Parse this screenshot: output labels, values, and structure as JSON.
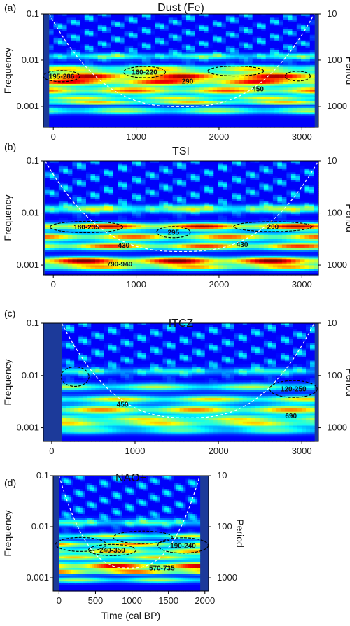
{
  "chart_data": [
    {
      "type": "heatmap",
      "panel_label": "(a)",
      "title": "Dust (Fe)",
      "ylabel": "Frequency",
      "ylabel_right": "Period",
      "xlabel": "",
      "x_range": [
        -120,
        3200
      ],
      "x_ticks": [
        0,
        1000,
        2000,
        3000
      ],
      "y_scale": "log",
      "y_range": [
        0.1,
        0.00035
      ],
      "y_ticks": [
        {
          "v": 0.1,
          "label": "0.1"
        },
        {
          "v": 0.01,
          "label": "0.01"
        },
        {
          "v": 0.001,
          "label": "0.001"
        }
      ],
      "period_ticks": [
        {
          "v": 10,
          "label": "10"
        },
        {
          "v": 100,
          "label": "100"
        },
        {
          "v": 1000,
          "label": "1000"
        }
      ],
      "data_x_range": [
        -50,
        3150
      ],
      "cone_x_range": [
        -50,
        3150
      ],
      "bands": [
        {
          "f": 0.012,
          "amp": 0.35,
          "w": 0.05
        },
        {
          "f": 0.0065,
          "amp": 0.55,
          "w": 0.05
        },
        {
          "f": 0.0045,
          "amp": 0.85,
          "w": 0.06
        },
        {
          "f": 0.0033,
          "amp": 0.75,
          "w": 0.05
        },
        {
          "f": 0.0022,
          "amp": 0.7,
          "w": 0.06
        },
        {
          "f": 0.0015,
          "amp": 0.5,
          "w": 0.04
        },
        {
          "f": 0.0012,
          "amp": 0.6,
          "w": 0.03
        },
        {
          "f": 0.0008,
          "amp": 0.45,
          "w": 0.05
        }
      ],
      "annotations": [
        {
          "text": "195-286",
          "x": 100,
          "f": 0.0045,
          "rx": 26,
          "ry": 8
        },
        {
          "text": "160-220",
          "x": 1100,
          "f": 0.0055,
          "rx": 30,
          "ry": 8
        },
        {
          "text": "290",
          "x": 1620,
          "f": 0.0035
        },
        {
          "text": "450",
          "x": 2470,
          "f": 0.0024
        },
        {
          "text": "",
          "x": 2200,
          "f": 0.0058,
          "rx": 40,
          "ry": 7
        },
        {
          "text": "",
          "x": 2950,
          "f": 0.0045,
          "rx": 18,
          "ry": 7
        }
      ]
    },
    {
      "type": "heatmap",
      "panel_label": "(b)",
      "title": "TSI",
      "ylabel": "Frequency",
      "ylabel_right": "Period",
      "xlabel": "",
      "x_range": [
        -120,
        3200
      ],
      "x_ticks": [
        0,
        1000,
        2000,
        3000
      ],
      "y_scale": "log",
      "y_range": [
        0.1,
        0.00065
      ],
      "y_ticks": [
        {
          "v": 0.1,
          "label": "0.1"
        },
        {
          "v": 0.01,
          "label": "0.01"
        },
        {
          "v": 0.001,
          "label": "0.001"
        }
      ],
      "period_ticks": [
        {
          "v": 10,
          "label": "10"
        },
        {
          "v": 100,
          "label": "100"
        },
        {
          "v": 1000,
          "label": "1000"
        }
      ],
      "data_x_range": [
        -100,
        3200
      ],
      "cone_x_range": [
        -100,
        3200
      ],
      "bands": [
        {
          "f": 0.012,
          "amp": 0.45,
          "w": 0.05
        },
        {
          "f": 0.0055,
          "amp": 0.85,
          "w": 0.05
        },
        {
          "f": 0.0035,
          "amp": 0.7,
          "w": 0.05
        },
        {
          "f": 0.0023,
          "amp": 0.75,
          "w": 0.05
        },
        {
          "f": 0.0012,
          "amp": 0.9,
          "w": 0.05
        },
        {
          "f": 0.0009,
          "amp": 0.6,
          "w": 0.04
        }
      ],
      "annotations": [
        {
          "text": "180-235",
          "x": 400,
          "f": 0.0054,
          "rx": 52,
          "ry": 8
        },
        {
          "text": "295",
          "x": 1450,
          "f": 0.0043,
          "rx": 24,
          "ry": 8
        },
        {
          "text": "200",
          "x": 2650,
          "f": 0.0055,
          "rx": 56,
          "ry": 7
        },
        {
          "text": "430",
          "x": 850,
          "f": 0.0024
        },
        {
          "text": "430",
          "x": 2280,
          "f": 0.0025
        },
        {
          "text": "790-940",
          "x": 800,
          "f": 0.00105
        }
      ]
    },
    {
      "type": "heatmap",
      "panel_label": "(c)",
      "title": "ITCZ",
      "ylabel": "Frequency",
      "ylabel_right": "Period",
      "xlabel": "",
      "x_range": [
        -100,
        3200
      ],
      "x_ticks": [
        0,
        1000,
        2000,
        3000
      ],
      "y_scale": "log",
      "y_range": [
        0.1,
        0.00055
      ],
      "y_ticks": [
        {
          "v": 0.1,
          "label": "0.1"
        },
        {
          "v": 0.01,
          "label": "0.01"
        },
        {
          "v": 0.001,
          "label": "0.001"
        }
      ],
      "period_ticks": [
        {
          "v": 10,
          "label": "10"
        },
        {
          "v": 100,
          "label": "100"
        },
        {
          "v": 1000,
          "label": "1000"
        }
      ],
      "data_x_range": [
        120,
        3150
      ],
      "cone_x_range": [
        120,
        3150
      ],
      "bands": [
        {
          "f": 0.012,
          "amp": 0.3,
          "w": 0.05
        },
        {
          "f": 0.006,
          "amp": 0.45,
          "w": 0.05
        },
        {
          "f": 0.0035,
          "amp": 0.55,
          "w": 0.05
        },
        {
          "f": 0.0022,
          "amp": 0.65,
          "w": 0.06
        },
        {
          "f": 0.0015,
          "amp": 0.5,
          "w": 0.04
        },
        {
          "f": 0.0012,
          "amp": 0.55,
          "w": 0.04
        },
        {
          "f": 0.0009,
          "amp": 0.35,
          "w": 0.05
        }
      ],
      "annotations": [
        {
          "text": "",
          "x": 280,
          "f": 0.0095,
          "rx": 20,
          "ry": 14
        },
        {
          "text": "120-250",
          "x": 2900,
          "f": 0.0055,
          "rx": 34,
          "ry": 12
        },
        {
          "text": "450",
          "x": 850,
          "f": 0.0028
        },
        {
          "text": "690",
          "x": 2870,
          "f": 0.0017
        }
      ]
    },
    {
      "type": "heatmap",
      "panel_label": "(d)",
      "title": "NAO+",
      "ylabel": "Frequency",
      "ylabel_right": "Period",
      "xlabel": "Time (cal BP)",
      "x_range": [
        -80,
        2050
      ],
      "x_ticks": [
        0,
        500,
        1000,
        1500,
        2000
      ],
      "y_scale": "log",
      "y_range": [
        0.1,
        0.00055
      ],
      "y_ticks": [
        {
          "v": 0.1,
          "label": "0.1"
        },
        {
          "v": 0.01,
          "label": "0.01"
        },
        {
          "v": 0.001,
          "label": "0.001"
        }
      ],
      "period_ticks": [
        {
          "v": 10,
          "label": "10"
        },
        {
          "v": 100,
          "label": "100"
        },
        {
          "v": 1000,
          "label": "1000"
        }
      ],
      "data_x_range": [
        0,
        1930
      ],
      "cone_x_range": [
        0,
        1930
      ],
      "bands": [
        {
          "f": 0.012,
          "amp": 0.35,
          "w": 0.05
        },
        {
          "f": 0.0065,
          "amp": 0.5,
          "w": 0.04
        },
        {
          "f": 0.0045,
          "amp": 0.65,
          "w": 0.04
        },
        {
          "f": 0.0033,
          "amp": 0.6,
          "w": 0.04
        },
        {
          "f": 0.0025,
          "amp": 0.55,
          "w": 0.04
        },
        {
          "f": 0.0017,
          "amp": 0.85,
          "w": 0.05
        },
        {
          "f": 0.0013,
          "amp": 0.7,
          "w": 0.03
        },
        {
          "f": 0.0009,
          "amp": 0.45,
          "w": 0.04
        }
      ],
      "annotations": [
        {
          "text": "",
          "x": 300,
          "f": 0.0045,
          "rx": 36,
          "ry": 10
        },
        {
          "text": "240-350",
          "x": 730,
          "f": 0.0035,
          "rx": 34,
          "ry": 8
        },
        {
          "text": "190-240",
          "x": 1700,
          "f": 0.0043,
          "rx": 36,
          "ry": 11
        },
        {
          "text": "",
          "x": 1150,
          "f": 0.0062,
          "rx": 42,
          "ry": 9
        },
        {
          "text": "570-735",
          "x": 1410,
          "f": 0.00155
        }
      ]
    }
  ]
}
